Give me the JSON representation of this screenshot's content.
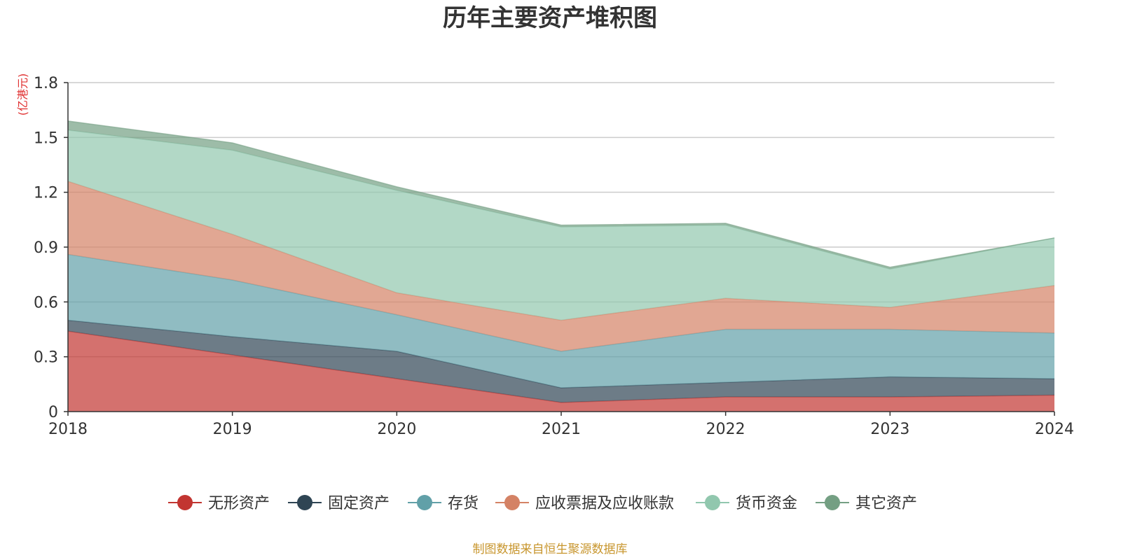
{
  "chart_data": {
    "type": "area",
    "title": "历年主要资产堆积图",
    "unit": "(亿港元)",
    "source": "制图数据来自恒生聚源数据库",
    "x": [
      "2018",
      "2019",
      "2020",
      "2021",
      "2022",
      "2023",
      "2024"
    ],
    "ylim": [
      0,
      1.8
    ],
    "yticks": [
      "0",
      "0.3",
      "0.6",
      "0.9",
      "1.2",
      "1.5",
      "1.8"
    ],
    "grid": true,
    "legend_position": "bottom",
    "stacked": true,
    "series": [
      {
        "name": "无形资产",
        "color": "#c23531",
        "values": [
          0.44,
          0.31,
          0.18,
          0.05,
          0.08,
          0.08,
          0.09
        ]
      },
      {
        "name": "固定资产",
        "color": "#2f4554",
        "values": [
          0.06,
          0.1,
          0.15,
          0.08,
          0.08,
          0.11,
          0.09
        ]
      },
      {
        "name": "存货",
        "color": "#61a0a8",
        "values": [
          0.36,
          0.31,
          0.2,
          0.2,
          0.29,
          0.26,
          0.25
        ]
      },
      {
        "name": "应收票据及应收账款",
        "color": "#d48265",
        "values": [
          0.4,
          0.25,
          0.12,
          0.17,
          0.17,
          0.12,
          0.26
        ]
      },
      {
        "name": "货币资金",
        "color": "#91c7ae",
        "values": [
          0.28,
          0.46,
          0.56,
          0.51,
          0.4,
          0.21,
          0.26
        ]
      },
      {
        "name": "其它资产",
        "color": "#749f83",
        "values": [
          0.05,
          0.04,
          0.02,
          0.01,
          0.01,
          0.01,
          0.0
        ]
      }
    ]
  }
}
